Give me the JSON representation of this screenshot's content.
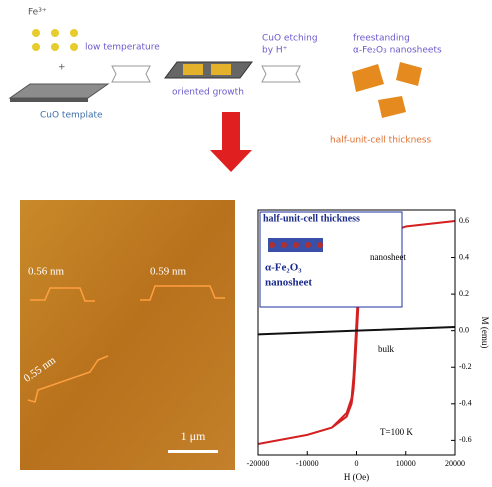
{
  "schematic": {
    "ion": "Fe³⁺",
    "plus": "+",
    "step1": "low temperature",
    "template": "CuO template",
    "step2": "oriented growth",
    "step3a": "CuO etching",
    "step3b": "by H⁺",
    "product_a": "freestanding",
    "product_b": "α-Fe₂O₃ nanosheets",
    "thickness": "half-unit-cell thickness"
  },
  "afm": {
    "labels": [
      "0.56 nm",
      "0.59 nm",
      "0.55 nm"
    ],
    "scale": "1 μm"
  },
  "chart_data": {
    "type": "line",
    "xlabel": "H (Oe)",
    "ylabel": "M (emu)",
    "annotations": [
      "half-unit-cell thickness",
      "α-Fe₂O₃",
      "nanosheet",
      "nanosheet",
      "bulk",
      "T=100 K"
    ],
    "series": [
      {
        "name": "nanosheet",
        "color": "#d42020",
        "x": [
          20000,
          10000,
          5000,
          2000,
          1000,
          600,
          300,
          0,
          -300,
          -600,
          -1000,
          -2000,
          -5000,
          -10000,
          -20000,
          -10000,
          -5000,
          -2000,
          -1000,
          -600,
          -300,
          0,
          300,
          600,
          1000,
          2000,
          5000,
          10000,
          20000
        ],
        "values": [
          0.6,
          0.57,
          0.52,
          0.45,
          0.37,
          0.25,
          0.1,
          -0.05,
          -0.2,
          -0.32,
          -0.4,
          -0.47,
          -0.53,
          -0.57,
          -0.62,
          -0.57,
          -0.53,
          -0.45,
          -0.37,
          -0.25,
          -0.1,
          0.05,
          0.2,
          0.32,
          0.4,
          0.47,
          0.52,
          0.57,
          0.6
        ]
      },
      {
        "name": "bulk",
        "color": "#111111",
        "x": [
          -20000,
          0,
          20000
        ],
        "values": [
          -0.02,
          0,
          0.02
        ]
      }
    ],
    "xlim": [
      -20000,
      20000
    ],
    "xticks": [
      -20000,
      -10000,
      0,
      10000,
      20000
    ],
    "ylim": [
      -0.68,
      0.66
    ],
    "yticks": [
      0.6,
      0.4,
      0.2,
      {
        "value": 0,
        "label": "0.0"
      },
      -0.2,
      -0.4,
      -0.6
    ]
  }
}
